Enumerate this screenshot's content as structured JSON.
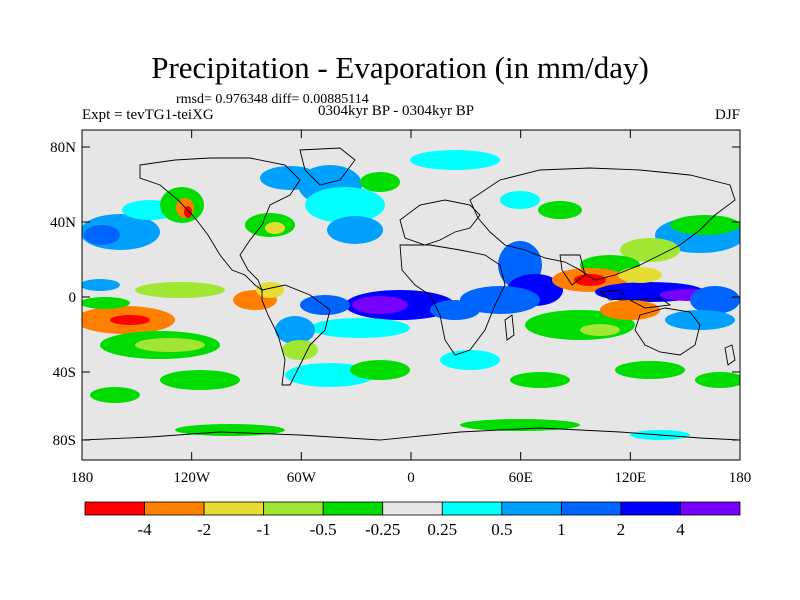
{
  "title": "Precipitation - Evaporation (in mm/day)",
  "stats_line": "rmsd= 0.976348 diff= 0.00885114",
  "left_label": "Expt = tevTG1-teiXG",
  "center_label": "0304kyr BP - 0304kyr BP",
  "right_label": "DJF",
  "map": {
    "lat_ticks": [
      "80N",
      "40N",
      "0",
      "40S",
      "80S"
    ],
    "lon_ticks": [
      "180",
      "120W",
      "60W",
      "0",
      "60E",
      "120E",
      "180"
    ],
    "background_color": "#e6e6e6"
  },
  "colorbar": {
    "colors": [
      "#ff0000",
      "#ff8000",
      "#e6dc32",
      "#a0e632",
      "#00dc00",
      "#e6e6e6",
      "#00ffff",
      "#00a0ff",
      "#0064ff",
      "#0000ff",
      "#7800ff"
    ],
    "labels": [
      "-4",
      "-2",
      "-1",
      "-0.5",
      "-0.25",
      "0.25",
      "0.5",
      "1",
      "2",
      "4"
    ]
  }
}
